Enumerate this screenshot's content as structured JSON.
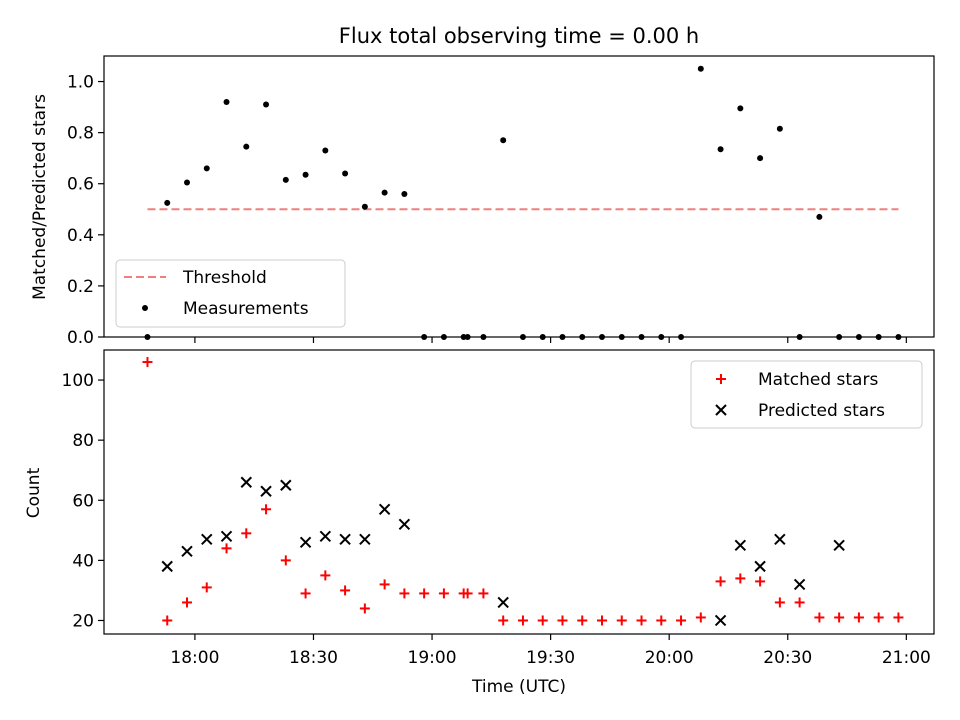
{
  "chart_data": [
    {
      "type": "scatter",
      "title": "Flux total observing time = 0.00 h",
      "xlabel": "",
      "ylabel": "Matched/Predicted stars",
      "ylim": [
        0,
        1.1
      ],
      "xlim": [
        "17:37",
        "21:07"
      ],
      "grid": false,
      "legend_position": "lower-left",
      "yticks": [
        "0.0",
        "0.2",
        "0.4",
        "0.6",
        "0.8",
        "1.0"
      ],
      "colors": {
        "threshold": "#f08080",
        "measurements": "#000000"
      },
      "series": [
        {
          "name": "Threshold",
          "kind": "dashed-line",
          "x": [
            "17:48",
            "20:58"
          ],
          "y": [
            0.5,
            0.5
          ]
        },
        {
          "name": "Measurements",
          "kind": "points",
          "x": [
            "17:48",
            "17:53",
            "17:58",
            "18:03",
            "18:08",
            "18:13",
            "18:18",
            "18:23",
            "18:28",
            "18:33",
            "18:38",
            "18:43",
            "18:48",
            "18:53",
            "18:58",
            "19:03",
            "19:08",
            "19:09",
            "19:13",
            "19:18",
            "19:23",
            "19:28",
            "19:33",
            "19:38",
            "19:43",
            "19:48",
            "19:53",
            "19:58",
            "20:03",
            "20:08",
            "20:13",
            "20:18",
            "20:23",
            "20:28",
            "20:33",
            "20:38",
            "20:43",
            "20:48",
            "20:53",
            "20:58"
          ],
          "y": [
            0.0,
            0.525,
            0.605,
            0.66,
            0.92,
            0.745,
            0.91,
            0.615,
            0.635,
            0.73,
            0.64,
            0.51,
            0.565,
            0.56,
            0.0,
            0.0,
            0.0,
            0.0,
            0.0,
            0.77,
            0.0,
            0.0,
            0.0,
            0.0,
            0.0,
            0.0,
            0.0,
            0.0,
            0.0,
            1.05,
            0.735,
            0.895,
            0.7,
            0.815,
            0.0,
            0.47,
            0.0,
            0.0,
            0.0,
            0.0
          ]
        }
      ]
    },
    {
      "type": "scatter",
      "title": "",
      "xlabel": "Time (UTC)",
      "ylabel": "Count",
      "ylim": [
        15.5,
        110
      ],
      "xlim": [
        "17:37",
        "21:07"
      ],
      "grid": false,
      "legend_position": "top-right",
      "yticks": [
        "20",
        "40",
        "60",
        "80",
        "100"
      ],
      "xticks": [
        "18:00",
        "18:30",
        "19:00",
        "19:30",
        "20:00",
        "20:30",
        "21:00"
      ],
      "colors": {
        "matched": "#ff0000",
        "predicted": "#000000"
      },
      "series": [
        {
          "name": "Matched stars",
          "marker": "plus",
          "x": [
            "17:48",
            "17:53",
            "17:58",
            "18:03",
            "18:08",
            "18:13",
            "18:18",
            "18:23",
            "18:28",
            "18:33",
            "18:38",
            "18:43",
            "18:48",
            "18:53",
            "18:58",
            "19:03",
            "19:08",
            "19:09",
            "19:13",
            "19:18",
            "19:23",
            "19:28",
            "19:33",
            "19:38",
            "19:43",
            "19:48",
            "19:53",
            "19:58",
            "20:03",
            "20:08",
            "20:13",
            "20:18",
            "20:23",
            "20:28",
            "20:33",
            "20:38",
            "20:43",
            "20:48",
            "20:53",
            "20:58"
          ],
          "y": [
            106,
            20,
            26,
            31,
            44,
            49,
            57,
            40,
            29,
            35,
            30,
            24,
            32,
            29,
            29,
            29,
            29,
            29,
            29,
            20,
            20,
            20,
            20,
            20,
            20,
            20,
            20,
            20,
            20,
            21,
            33,
            34,
            33,
            26,
            26,
            21,
            21,
            21,
            21,
            21
          ]
        },
        {
          "name": "Predicted stars",
          "marker": "x",
          "x": [
            "17:53",
            "17:58",
            "18:03",
            "18:08",
            "18:13",
            "18:18",
            "18:23",
            "18:28",
            "18:33",
            "18:38",
            "18:43",
            "18:48",
            "18:53",
            "19:18",
            "20:13",
            "20:18",
            "20:23",
            "20:28",
            "20:33",
            "20:43"
          ],
          "y": [
            38,
            43,
            47,
            48,
            66,
            63,
            65,
            46,
            48,
            47,
            47,
            57,
            52,
            26,
            20,
            45,
            38,
            47,
            32,
            45
          ]
        }
      ]
    }
  ]
}
